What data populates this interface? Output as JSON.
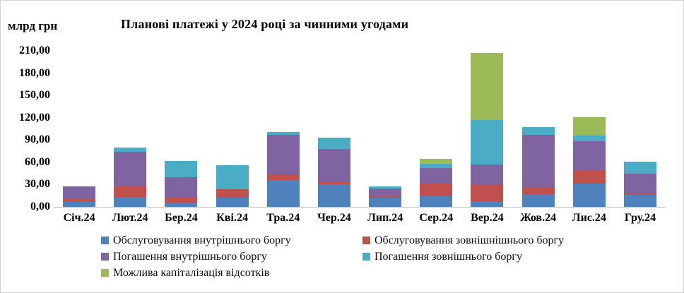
{
  "frame": {
    "background": "#FFFFFF",
    "border_color": "#D5D2D2"
  },
  "header": {
    "unit_label": "млрд грн",
    "title": "Планові платежі у 2024 році за чинними угодами"
  },
  "chart_data": {
    "type": "bar",
    "stacked": true,
    "title": "Планові платежі у 2024 році за чинними угодами",
    "xlabel": "",
    "ylabel": "млрд грн",
    "ylim": [
      0,
      210
    ],
    "y_tick_step": 30,
    "y_tick_labels": [
      "210,00",
      "180,00",
      "150,00",
      "120,00",
      "90,00",
      "60,00",
      "30,00",
      "0,00"
    ],
    "grid": false,
    "legend_position": "bottom",
    "categories": [
      "Січ.24",
      "Лют.24",
      "Бер.24",
      "Кві.24",
      "Тра.24",
      "Чер.24",
      "Лип.24",
      "Сер.24",
      "Вер.24",
      "Жов.24",
      "Лис.24",
      "Гру.24"
    ],
    "series": [
      {
        "name": "Обслуговування внутрішнього боргу",
        "color": "#4F81BD",
        "values": [
          7,
          13,
          6,
          12,
          36,
          30,
          12,
          15,
          8,
          17,
          31,
          16
        ]
      },
      {
        "name": "Обслуговування зовнішнішнього боргу",
        "color": "#C0504D",
        "values": [
          4,
          15,
          6,
          12,
          8,
          3,
          3,
          17,
          22,
          10,
          18,
          3
        ]
      },
      {
        "name": "Погашення внутрішнього боргу",
        "color": "#8064A2",
        "values": [
          17,
          46,
          28,
          0,
          53,
          45,
          10,
          20,
          27,
          70,
          39,
          26
        ]
      },
      {
        "name": "Погашення зовнішнього боргу",
        "color": "#4BACC6",
        "values": [
          0,
          6,
          22,
          32,
          4,
          15,
          3,
          6,
          60,
          10,
          8,
          16
        ]
      },
      {
        "name": "Можлива капіталізація відсотків",
        "color": "#9BBB59",
        "values": [
          0,
          0,
          0,
          0,
          0,
          0,
          0,
          7,
          90,
          0,
          25,
          0
        ]
      }
    ]
  }
}
